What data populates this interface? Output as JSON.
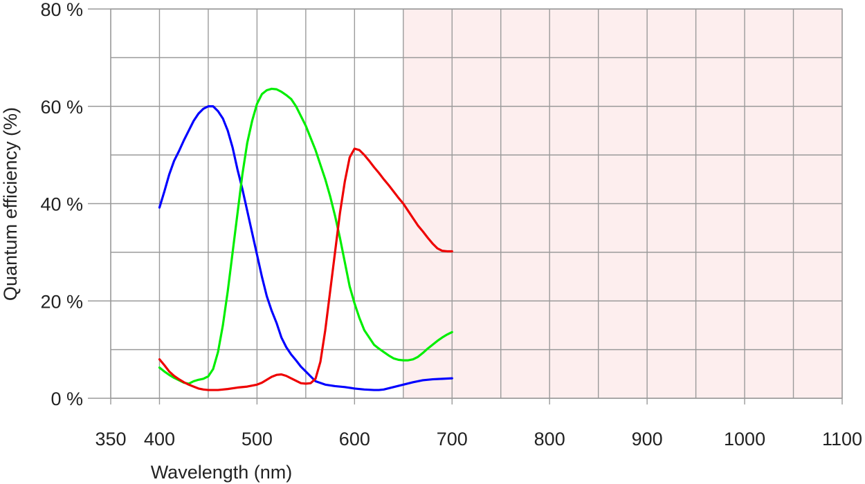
{
  "chart_data": {
    "type": "line",
    "title": "",
    "xlabel": "Wavelength (nm)",
    "ylabel": "Quantum efficiency (%)",
    "xlim": [
      350,
      1100
    ],
    "ylim": [
      0,
      80
    ],
    "x_ticks": [
      350,
      400,
      500,
      600,
      700,
      800,
      900,
      1000,
      1100
    ],
    "x_tick_labels": [
      "350",
      "400",
      "500",
      "600",
      "700",
      "800",
      "900",
      "1000",
      "1100"
    ],
    "y_ticks": [
      0,
      20,
      40,
      60,
      80
    ],
    "y_tick_labels": [
      "0 %",
      "20 %",
      "40 %",
      "60 %",
      "80 %"
    ],
    "grid": true,
    "shaded_region": {
      "x_range": [
        650,
        1100
      ],
      "color": "#fdeeee"
    },
    "legend": "none",
    "series": [
      {
        "color": "#0000ff",
        "points": [
          [
            400,
            39.2
          ],
          [
            405,
            42.5
          ],
          [
            410,
            46.0
          ],
          [
            415,
            48.8
          ],
          [
            420,
            50.8
          ],
          [
            425,
            53.0
          ],
          [
            430,
            55.0
          ],
          [
            435,
            57.0
          ],
          [
            440,
            58.5
          ],
          [
            445,
            59.5
          ],
          [
            450,
            60.0
          ],
          [
            455,
            60.0
          ],
          [
            460,
            59.0
          ],
          [
            465,
            57.5
          ],
          [
            470,
            55.0
          ],
          [
            475,
            51.5
          ],
          [
            480,
            47.0
          ],
          [
            485,
            43.0
          ],
          [
            490,
            38.5
          ],
          [
            495,
            34.0
          ],
          [
            500,
            29.5
          ],
          [
            505,
            25.0
          ],
          [
            510,
            21.0
          ],
          [
            515,
            18.0
          ],
          [
            520,
            15.5
          ],
          [
            525,
            12.5
          ],
          [
            530,
            10.5
          ],
          [
            535,
            9.0
          ],
          [
            540,
            7.8
          ],
          [
            545,
            6.5
          ],
          [
            550,
            5.5
          ],
          [
            555,
            4.5
          ],
          [
            560,
            3.5
          ],
          [
            570,
            2.8
          ],
          [
            580,
            2.5
          ],
          [
            590,
            2.3
          ],
          [
            600,
            2.0
          ],
          [
            610,
            1.8
          ],
          [
            620,
            1.7
          ],
          [
            625,
            1.7
          ],
          [
            630,
            1.8
          ],
          [
            640,
            2.3
          ],
          [
            650,
            2.8
          ],
          [
            660,
            3.3
          ],
          [
            670,
            3.7
          ],
          [
            680,
            3.9
          ],
          [
            690,
            4.0
          ],
          [
            700,
            4.1
          ]
        ]
      },
      {
        "color": "#00ee00",
        "points": [
          [
            400,
            6.3
          ],
          [
            405,
            5.5
          ],
          [
            410,
            4.8
          ],
          [
            415,
            4.2
          ],
          [
            420,
            3.7
          ],
          [
            425,
            3.2
          ],
          [
            430,
            3.0
          ],
          [
            435,
            3.5
          ],
          [
            440,
            3.8
          ],
          [
            445,
            4.0
          ],
          [
            450,
            4.5
          ],
          [
            455,
            6.0
          ],
          [
            460,
            9.5
          ],
          [
            465,
            15.0
          ],
          [
            470,
            22.0
          ],
          [
            475,
            30.0
          ],
          [
            480,
            38.0
          ],
          [
            485,
            46.0
          ],
          [
            490,
            52.5
          ],
          [
            495,
            57.0
          ],
          [
            500,
            60.5
          ],
          [
            505,
            62.5
          ],
          [
            510,
            63.3
          ],
          [
            515,
            63.6
          ],
          [
            520,
            63.5
          ],
          [
            525,
            63.0
          ],
          [
            530,
            62.3
          ],
          [
            535,
            61.5
          ],
          [
            540,
            60.0
          ],
          [
            545,
            58.0
          ],
          [
            550,
            56.0
          ],
          [
            555,
            53.5
          ],
          [
            560,
            51.0
          ],
          [
            565,
            48.0
          ],
          [
            570,
            45.0
          ],
          [
            575,
            41.5
          ],
          [
            580,
            37.5
          ],
          [
            585,
            33.0
          ],
          [
            590,
            28.0
          ],
          [
            595,
            23.0
          ],
          [
            600,
            19.5
          ],
          [
            605,
            16.5
          ],
          [
            610,
            14.0
          ],
          [
            615,
            12.5
          ],
          [
            620,
            11.0
          ],
          [
            625,
            10.2
          ],
          [
            630,
            9.5
          ],
          [
            635,
            8.8
          ],
          [
            640,
            8.2
          ],
          [
            645,
            7.9
          ],
          [
            650,
            7.8
          ],
          [
            655,
            7.8
          ],
          [
            660,
            8.0
          ],
          [
            665,
            8.5
          ],
          [
            670,
            9.3
          ],
          [
            675,
            10.2
          ],
          [
            680,
            11.0
          ],
          [
            685,
            11.8
          ],
          [
            690,
            12.5
          ],
          [
            695,
            13.1
          ],
          [
            700,
            13.6
          ]
        ]
      },
      {
        "color": "#ee0000",
        "points": [
          [
            400,
            8.0
          ],
          [
            405,
            6.8
          ],
          [
            410,
            5.5
          ],
          [
            415,
            4.6
          ],
          [
            420,
            3.9
          ],
          [
            425,
            3.3
          ],
          [
            430,
            2.8
          ],
          [
            435,
            2.4
          ],
          [
            440,
            2.0
          ],
          [
            445,
            1.8
          ],
          [
            450,
            1.7
          ],
          [
            460,
            1.7
          ],
          [
            470,
            1.9
          ],
          [
            480,
            2.2
          ],
          [
            490,
            2.4
          ],
          [
            495,
            2.6
          ],
          [
            500,
            2.8
          ],
          [
            505,
            3.2
          ],
          [
            510,
            3.8
          ],
          [
            515,
            4.4
          ],
          [
            520,
            4.8
          ],
          [
            525,
            4.9
          ],
          [
            530,
            4.6
          ],
          [
            535,
            4.1
          ],
          [
            540,
            3.6
          ],
          [
            545,
            3.1
          ],
          [
            550,
            3.0
          ],
          [
            555,
            3.1
          ],
          [
            560,
            4.0
          ],
          [
            565,
            7.5
          ],
          [
            570,
            14.0
          ],
          [
            575,
            22.0
          ],
          [
            580,
            30.0
          ],
          [
            585,
            38.0
          ],
          [
            590,
            44.5
          ],
          [
            595,
            49.5
          ],
          [
            600,
            51.3
          ],
          [
            605,
            51.0
          ],
          [
            610,
            50.0
          ],
          [
            615,
            48.8
          ],
          [
            620,
            47.5
          ],
          [
            625,
            46.3
          ],
          [
            630,
            45.0
          ],
          [
            635,
            43.8
          ],
          [
            640,
            42.5
          ],
          [
            645,
            41.2
          ],
          [
            650,
            40.0
          ],
          [
            655,
            38.5
          ],
          [
            660,
            37.0
          ],
          [
            665,
            35.5
          ],
          [
            670,
            34.3
          ],
          [
            675,
            33.0
          ],
          [
            680,
            31.8
          ],
          [
            685,
            30.8
          ],
          [
            690,
            30.3
          ],
          [
            695,
            30.2
          ],
          [
            700,
            30.2
          ]
        ]
      }
    ]
  }
}
